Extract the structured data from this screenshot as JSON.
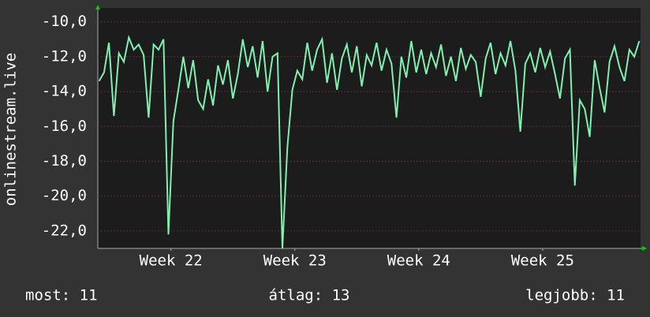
{
  "chart_data": {
    "type": "line",
    "ylabel": "onlinestream.live",
    "annotations": [
      "most: 11",
      "átlag: 13",
      "legjobb: 11"
    ],
    "xlim": [
      21.41,
      25.79
    ],
    "xticks": [
      {
        "value": 22,
        "label": "Week 22"
      },
      {
        "value": 23,
        "label": "Week 23"
      },
      {
        "value": 24,
        "label": "Week 24"
      },
      {
        "value": 25,
        "label": "Week 25"
      }
    ],
    "ylim": [
      -23.0,
      -9.2
    ],
    "yticks": [
      {
        "value": -10,
        "label": "-10,0"
      },
      {
        "value": -12,
        "label": "-12,0"
      },
      {
        "value": -14,
        "label": "-14,0"
      },
      {
        "value": -16,
        "label": "-16,0"
      },
      {
        "value": -18,
        "label": "-18,0"
      },
      {
        "value": -20,
        "label": "-20,0"
      },
      {
        "value": -22,
        "label": "-22,0"
      }
    ],
    "grid": true,
    "x": [
      21.42,
      21.46,
      21.5,
      21.54,
      21.58,
      21.62,
      21.66,
      21.7,
      21.74,
      21.78,
      21.82,
      21.86,
      21.9,
      21.94,
      21.98,
      22.02,
      22.06,
      22.1,
      22.14,
      22.18,
      22.22,
      22.26,
      22.3,
      22.34,
      22.38,
      22.42,
      22.46,
      22.5,
      22.54,
      22.58,
      22.62,
      22.66,
      22.7,
      22.74,
      22.78,
      22.82,
      22.86,
      22.9,
      22.94,
      22.98,
      23.02,
      23.06,
      23.1,
      23.14,
      23.18,
      23.22,
      23.26,
      23.3,
      23.34,
      23.38,
      23.42,
      23.46,
      23.5,
      23.54,
      23.58,
      23.62,
      23.66,
      23.7,
      23.74,
      23.78,
      23.82,
      23.86,
      23.9,
      23.94,
      23.98,
      24.02,
      24.06,
      24.1,
      24.14,
      24.18,
      24.22,
      24.26,
      24.3,
      24.34,
      24.38,
      24.42,
      24.46,
      24.5,
      24.54,
      24.58,
      24.62,
      24.66,
      24.7,
      24.74,
      24.78,
      24.82,
      24.86,
      24.9,
      24.94,
      24.98,
      25.02,
      25.06,
      25.1,
      25.14,
      25.18,
      25.22,
      25.26,
      25.3,
      25.34,
      25.38,
      25.42,
      25.46,
      25.5,
      25.54,
      25.58,
      25.62,
      25.66,
      25.7,
      25.74,
      25.78
    ],
    "series": [
      {
        "color": "#80f0b0",
        "values": [
          -13.4,
          -12.9,
          -11.2,
          -15.4,
          -11.8,
          -12.3,
          -10.9,
          -11.6,
          -11.3,
          -11.9,
          -15.5,
          -11.3,
          -11.6,
          -11.0,
          -22.2,
          -15.7,
          -13.9,
          -12.0,
          -13.8,
          -12.2,
          -14.5,
          -15.0,
          -13.3,
          -14.8,
          -12.5,
          -13.6,
          -12.2,
          -14.4,
          -13.0,
          -11.0,
          -12.6,
          -11.4,
          -13.2,
          -11.1,
          -14.0,
          -12.0,
          -11.8,
          -23.0,
          -17.2,
          -13.9,
          -12.8,
          -13.3,
          -11.2,
          -12.8,
          -11.6,
          -11.0,
          -13.5,
          -11.8,
          -13.9,
          -12.1,
          -11.3,
          -12.9,
          -11.4,
          -13.7,
          -11.9,
          -12.5,
          -11.2,
          -12.8,
          -11.6,
          -12.4,
          -15.5,
          -12.0,
          -13.2,
          -11.1,
          -12.9,
          -11.6,
          -13.0,
          -11.8,
          -12.6,
          -11.3,
          -13.1,
          -12.0,
          -13.4,
          -11.5,
          -12.7,
          -11.9,
          -12.3,
          -14.3,
          -12.1,
          -11.2,
          -13.0,
          -11.8,
          -12.5,
          -11.1,
          -12.8,
          -16.3,
          -12.4,
          -11.8,
          -12.9,
          -11.5,
          -12.6,
          -11.7,
          -13.0,
          -14.4,
          -12.1,
          -11.6,
          -19.4,
          -14.5,
          -15.0,
          -16.6,
          -12.2,
          -13.8,
          -15.2,
          -12.3,
          -11.4,
          -12.6,
          -13.4,
          -11.6,
          -12.0,
          -11.1
        ]
      }
    ]
  }
}
